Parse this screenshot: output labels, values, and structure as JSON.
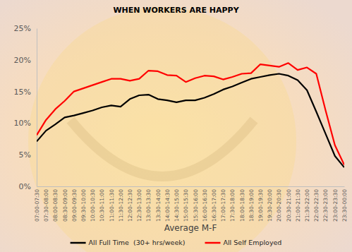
{
  "chart_data": {
    "type": "line",
    "title": "WHEN WORKERS ARE HAPPY",
    "x_label": "Average M-F",
    "categories": [
      "07:00-07:30",
      "07:30-08:00",
      "08:00-08:30",
      "08:30-09:00",
      "09:00-09:30",
      "09:30-10:00",
      "10:00-10:30",
      "10:30-11:00",
      "11:00-11:30",
      "11:30-12:00",
      "12:00-12:30",
      "12:30-13:00",
      "13:00-13:30",
      "13:30-14:00",
      "14:00-14:30",
      "14:30-15:00",
      "15:00-15:30",
      "15:30-16:00",
      "16:00-16:30",
      "16:30-17:00",
      "17:00-17:30",
      "17:30-18:00",
      "18:00-18:30",
      "18:30-19:00",
      "19:00-19:30",
      "19:30-20:00",
      "20:00-20:30",
      "20:30-21:00",
      "21:00-21:30",
      "21:30-22:00",
      "22:00-22:30",
      "22:30-23:00",
      "23:00-23:30",
      "23:30-00:00"
    ],
    "series": [
      {
        "name": "All Full Time  (30+ hrs/week)",
        "color": "#000000",
        "values": [
          7.1,
          8.8,
          9.8,
          10.9,
          11.2,
          11.6,
          12.0,
          12.5,
          12.8,
          12.6,
          13.8,
          14.4,
          14.5,
          13.8,
          13.6,
          13.3,
          13.6,
          13.6,
          14.0,
          14.6,
          15.3,
          15.8,
          16.4,
          17.0,
          17.3,
          17.6,
          17.8,
          17.5,
          16.8,
          15.2,
          11.8,
          8.3,
          4.8,
          3.0
        ]
      },
      {
        "name": "All Self Employed",
        "color": "#ff0000",
        "values": [
          8.1,
          10.5,
          12.2,
          13.5,
          15.0,
          15.5,
          16.0,
          16.5,
          17.0,
          17.0,
          16.7,
          17.0,
          18.3,
          18.2,
          17.6,
          17.5,
          16.5,
          17.1,
          17.5,
          17.4,
          16.9,
          17.3,
          17.8,
          17.9,
          19.3,
          19.1,
          18.9,
          19.5,
          18.4,
          18.8,
          17.8,
          12.0,
          6.5,
          3.4
        ]
      }
    ],
    "ylim": [
      0,
      25
    ],
    "yticks": [
      {
        "value": 0,
        "label": "0%"
      },
      {
        "value": 5,
        "label": "5%"
      },
      {
        "value": 10,
        "label": "10%"
      },
      {
        "value": 15,
        "label": "15%"
      },
      {
        "value": 20,
        "label": "20%"
      },
      {
        "value": 25,
        "label": "25%"
      }
    ],
    "grid": false,
    "legend": "bottom"
  }
}
